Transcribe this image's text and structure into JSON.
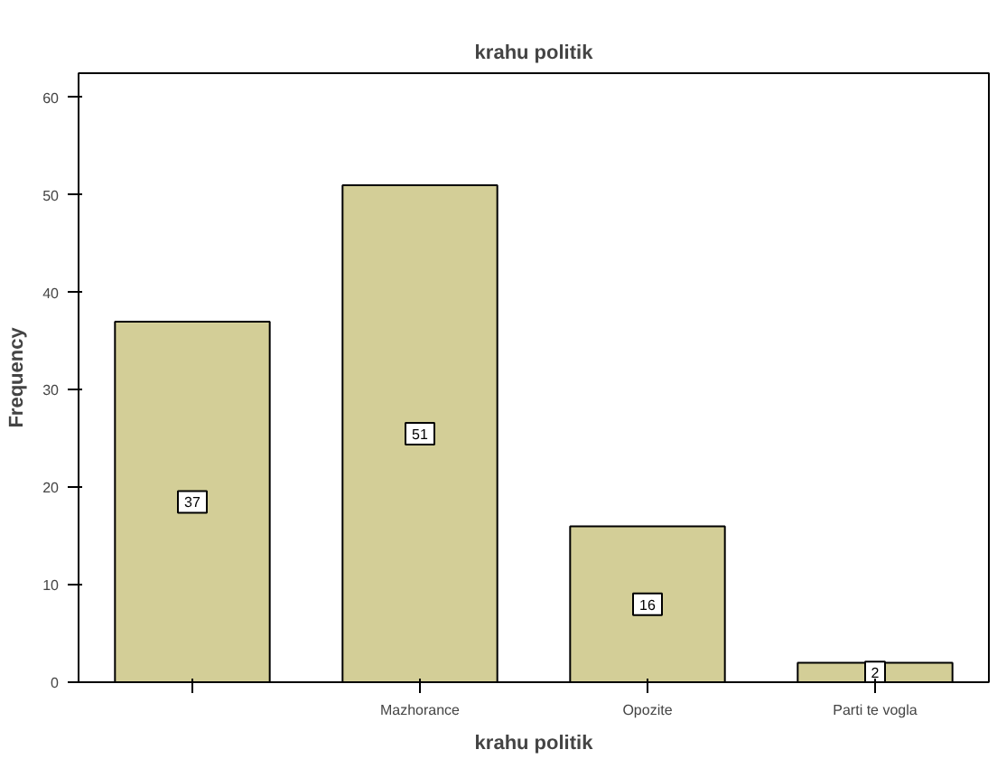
{
  "chart_data": {
    "type": "bar",
    "title": "krahu politik",
    "xlabel": "krahu politik",
    "ylabel": "Frequency",
    "categories": [
      null,
      "Mazhorance",
      "Opozite",
      "Parti te vogla"
    ],
    "values": [
      37,
      51,
      16,
      2
    ],
    "color": "#d3ce97",
    "ylim": [
      0,
      62.5
    ],
    "yticks": [
      0,
      10,
      20,
      30,
      40,
      50,
      60
    ],
    "grid": false,
    "data_labels": true
  }
}
